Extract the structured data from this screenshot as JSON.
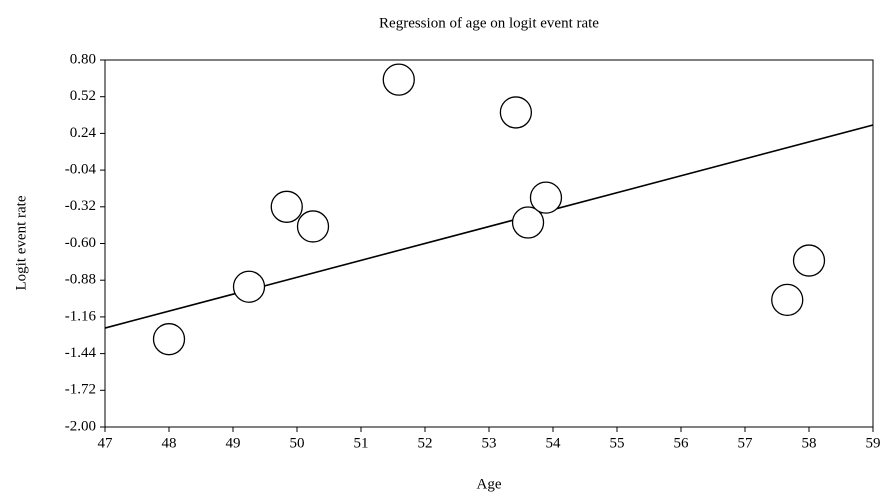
{
  "chart_data": {
    "type": "scatter",
    "title": "Regression of age on logit event rate",
    "x_label": "Age",
    "y_label": "Logit event rate",
    "x": [
      48.0,
      49.25,
      49.84,
      50.25,
      51.59,
      53.42,
      53.61,
      53.89,
      57.66,
      58.0
    ],
    "values": [
      -1.33,
      -0.93,
      -0.32,
      -0.47,
      0.65,
      0.4,
      -0.44,
      -0.25,
      -1.03,
      -0.73
    ],
    "regression": {
      "x": [
        47,
        59
      ],
      "values": [
        -1.245,
        0.304
      ]
    },
    "xlim": [
      47,
      59
    ],
    "xticks": [
      47,
      48,
      49,
      50,
      51,
      52,
      53,
      54,
      55,
      56,
      57,
      58,
      59
    ],
    "ylim": [
      -2.0,
      0.8
    ],
    "yticks": [
      {
        "value": 0.8,
        "label": "0.80"
      },
      0.52,
      0.24,
      -0.04,
      -0.32,
      {
        "value": -0.6,
        "label": "-0.60"
      },
      -0.88,
      -1.16,
      -1.44,
      -1.72,
      {
        "value": -2.0,
        "label": "-2.00"
      }
    ],
    "marker_color": "#ffffff",
    "line_color": "#000000",
    "grid": false
  }
}
